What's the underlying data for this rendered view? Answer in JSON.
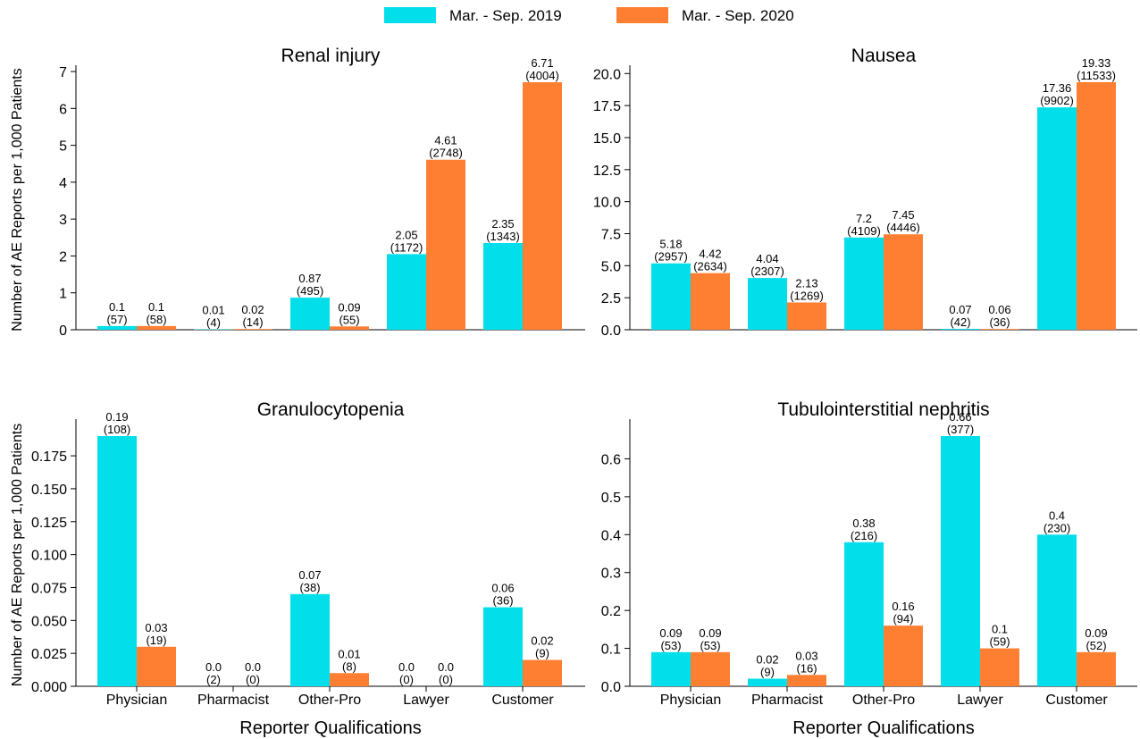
{
  "legend": [
    {
      "name": "Mar. - Sep. 2019",
      "color": "#03dfea"
    },
    {
      "name": "Mar. - Sep. 2020",
      "color": "#ff7f32"
    }
  ],
  "chart_data": [
    {
      "type": "bar",
      "title": "Renal injury",
      "ylabel": "Number of AE Reports per 1,000 Patients",
      "ylim": [
        0,
        7.05
      ],
      "yticks": [
        0,
        1,
        2,
        3,
        4,
        5,
        6,
        7
      ],
      "series": [
        {
          "values": [
            0.1,
            0.01,
            0.87,
            2.05,
            2.35
          ],
          "count_labels": [
            "(57)",
            "(4)",
            "(495)",
            "(1172)",
            "(1343)"
          ]
        },
        {
          "values": [
            0.1,
            0.02,
            0.09,
            4.61,
            6.71
          ],
          "count_labels": [
            "(58)",
            "(14)",
            "(55)",
            "(2748)",
            "(4004)"
          ]
        }
      ]
    },
    {
      "type": "bar",
      "title": "Nausea",
      "ylim": [
        0,
        20.3
      ],
      "yticks": [
        {
          "value": 0,
          "label": "0.0"
        },
        2.5,
        {
          "value": 5,
          "label": "5.0"
        },
        7.5,
        {
          "value": 10,
          "label": "10.0"
        },
        12.5,
        {
          "value": 15,
          "label": "15.0"
        },
        17.5,
        {
          "value": 20,
          "label": "20.0"
        }
      ],
      "series": [
        {
          "values": [
            5.18,
            4.04,
            7.2,
            0.07,
            17.36
          ],
          "count_labels": [
            "(2957)",
            "(2307)",
            "(4109)",
            "(42)",
            "(9902)"
          ]
        },
        {
          "values": [
            4.42,
            2.13,
            7.45,
            0.06,
            19.33
          ],
          "count_labels": [
            "(2634)",
            "(1269)",
            "(4446)",
            "(36)",
            "(11533)"
          ]
        }
      ]
    },
    {
      "type": "bar",
      "title": "Granulocytopenia",
      "ylabel": "Number of AE Reports per 1,000 Patients",
      "xlabel": "Reporter Qualifications",
      "categories": [
        "Physician",
        "Pharmacist",
        "Other-Pro",
        "Lawyer",
        "Customer"
      ],
      "ylim": [
        0,
        0.1995
      ],
      "yticks": [
        {
          "value": 0,
          "label": "0.000"
        },
        0.025,
        {
          "value": 0.05,
          "label": "0.050"
        },
        0.075,
        {
          "value": 0.1,
          "label": "0.100"
        },
        0.125,
        {
          "value": 0.15,
          "label": "0.150"
        },
        0.175
      ],
      "series": [
        {
          "values": [
            0.19,
            0,
            0.07,
            0,
            0.06
          ],
          "value_labels": [
            "0.19",
            "0.0",
            "0.07",
            "0.0",
            "0.06"
          ],
          "count_labels": [
            "(108)",
            "(2)",
            "(38)",
            "(0)",
            "(36)"
          ]
        },
        {
          "values": [
            0.03,
            0,
            0.01,
            0,
            0.02
          ],
          "value_labels": [
            "0.03",
            "0.0",
            "0.01",
            "0.0",
            "0.02"
          ],
          "count_labels": [
            "(19)",
            "(0)",
            "(8)",
            "(0)",
            "(9)"
          ]
        }
      ]
    },
    {
      "type": "bar",
      "title": "Tubulointerstitial nephritis",
      "xlabel": "Reporter Qualifications",
      "categories": [
        "Physician",
        "Pharmacist",
        "Other-Pro",
        "Lawyer",
        "Customer"
      ],
      "ylim": [
        0,
        0.693
      ],
      "yticks": [
        {
          "value": 0,
          "label": "0.0"
        },
        0.1,
        0.2,
        0.3,
        0.4,
        0.5,
        0.6
      ],
      "series": [
        {
          "values": [
            0.09,
            0.02,
            0.38,
            0.66,
            0.4
          ],
          "count_labels": [
            "(53)",
            "(9)",
            "(216)",
            "(377)",
            "(230)"
          ]
        },
        {
          "values": [
            0.09,
            0.03,
            0.16,
            0.1,
            0.09
          ],
          "count_labels": [
            "(53)",
            "(16)",
            "(94)",
            "(59)",
            "(52)"
          ]
        }
      ]
    }
  ]
}
